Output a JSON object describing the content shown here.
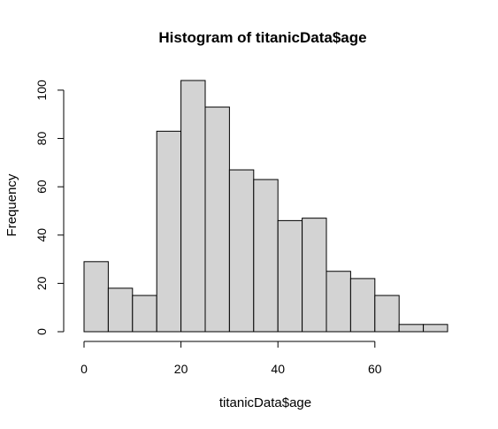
{
  "chart_data": {
    "type": "bar",
    "subtype": "histogram",
    "title": "Histogram of titanicData$age",
    "xlabel": "titanicData$age",
    "ylabel": "Frequency",
    "bins": [
      {
        "start": 0,
        "end": 5,
        "count": 29
      },
      {
        "start": 5,
        "end": 10,
        "count": 18
      },
      {
        "start": 10,
        "end": 15,
        "count": 15
      },
      {
        "start": 15,
        "end": 20,
        "count": 83
      },
      {
        "start": 20,
        "end": 25,
        "count": 104
      },
      {
        "start": 25,
        "end": 30,
        "count": 93
      },
      {
        "start": 30,
        "end": 35,
        "count": 67
      },
      {
        "start": 35,
        "end": 40,
        "count": 63
      },
      {
        "start": 40,
        "end": 45,
        "count": 46
      },
      {
        "start": 45,
        "end": 50,
        "count": 47
      },
      {
        "start": 50,
        "end": 55,
        "count": 25
      },
      {
        "start": 55,
        "end": 60,
        "count": 22
      },
      {
        "start": 60,
        "end": 65,
        "count": 15
      },
      {
        "start": 65,
        "end": 70,
        "count": 3
      },
      {
        "start": 70,
        "end": 75,
        "count": 3
      }
    ],
    "xlim": [
      0,
      75
    ],
    "ylim": [
      0,
      104
    ],
    "x_ticks": [
      0,
      20,
      40,
      60
    ],
    "y_ticks": [
      0,
      20,
      40,
      60,
      80,
      100
    ],
    "x_tick_labels": [
      "0",
      "20",
      "40",
      "60"
    ],
    "y_tick_labels": [
      "0",
      "20",
      "40",
      "60",
      "80",
      "100"
    ],
    "bar_fill": "#d3d3d3",
    "bar_stroke": "#000000",
    "grid": false,
    "legend": false
  }
}
